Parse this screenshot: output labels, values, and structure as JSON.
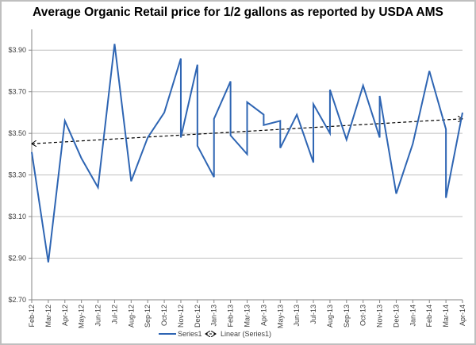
{
  "chart_data": {
    "type": "line",
    "title": "Average Organic Retail price for 1/2 gallons as reported by USDA AMS",
    "xlabel": "",
    "ylabel": "",
    "categories": [
      "Feb-12",
      "Mar-12",
      "Apr-12",
      "May-12",
      "Jun-12",
      "Jul-12",
      "Aug-12",
      "Sep-12",
      "Oct-12",
      "Nov-12",
      "Dec-12",
      "Jan-13",
      "Feb-13",
      "Mar-13",
      "Apr-13",
      "May-13",
      "Jun-13",
      "Jul-13",
      "Aug-13",
      "Sep-13",
      "Oct-13",
      "Nov-13",
      "Dec-13",
      "Jan-14",
      "Feb-14",
      "Mar-14",
      "Apr-14"
    ],
    "ylim": [
      2.7,
      4.0
    ],
    "yticks": [
      2.7,
      2.9,
      3.1,
      3.3,
      3.5,
      3.7,
      3.9
    ],
    "ytick_labels": [
      "$2.70",
      "$2.90",
      "$3.10",
      "$3.30",
      "$3.50",
      "$3.70",
      "$3.90"
    ],
    "grid": "horizontal",
    "legend_position": "bottom",
    "series": [
      {
        "name": "Series1",
        "color": "#2e65b3",
        "points": [
          [
            "Feb-12",
            3.41
          ],
          [
            "Mar-12",
            2.88
          ],
          [
            "Apr-12",
            3.56
          ],
          [
            "May-12",
            3.38
          ],
          [
            "Jun-12",
            3.24
          ],
          [
            "Jul-12",
            3.93
          ],
          [
            "Aug-12",
            3.27
          ],
          [
            "Sep-12",
            3.48
          ],
          [
            "Oct-12",
            3.6
          ],
          [
            "Nov-12",
            3.86
          ],
          [
            "Nov-12",
            3.48
          ],
          [
            "Dec-12",
            3.83
          ],
          [
            "Dec-12",
            3.44
          ],
          [
            "Jan-13",
            3.29
          ],
          [
            "Jan-13",
            3.57
          ],
          [
            "Feb-13",
            3.75
          ],
          [
            "Feb-13",
            3.49
          ],
          [
            "Mar-13",
            3.4
          ],
          [
            "Mar-13",
            3.65
          ],
          [
            "Apr-13",
            3.59
          ],
          [
            "Apr-13",
            3.54
          ],
          [
            "May-13",
            3.56
          ],
          [
            "May-13",
            3.43
          ],
          [
            "Jun-13",
            3.59
          ],
          [
            "Jul-13",
            3.36
          ],
          [
            "Jul-13",
            3.64
          ],
          [
            "Aug-13",
            3.5
          ],
          [
            "Aug-13",
            3.71
          ],
          [
            "Sep-13",
            3.47
          ],
          [
            "Oct-13",
            3.73
          ],
          [
            "Nov-13",
            3.48
          ],
          [
            "Nov-13",
            3.68
          ],
          [
            "Dec-13",
            3.21
          ],
          [
            "Jan-14",
            3.45
          ],
          [
            "Feb-14",
            3.8
          ],
          [
            "Mar-14",
            3.52
          ],
          [
            "Mar-14",
            3.19
          ],
          [
            "Apr-14",
            3.6
          ]
        ]
      },
      {
        "name": "Linear (Series1)",
        "type": "trendline",
        "color": "#000000",
        "style": "dashed",
        "points": [
          [
            "Feb-12",
            3.45
          ],
          [
            "Apr-14",
            3.57
          ]
        ]
      }
    ]
  }
}
